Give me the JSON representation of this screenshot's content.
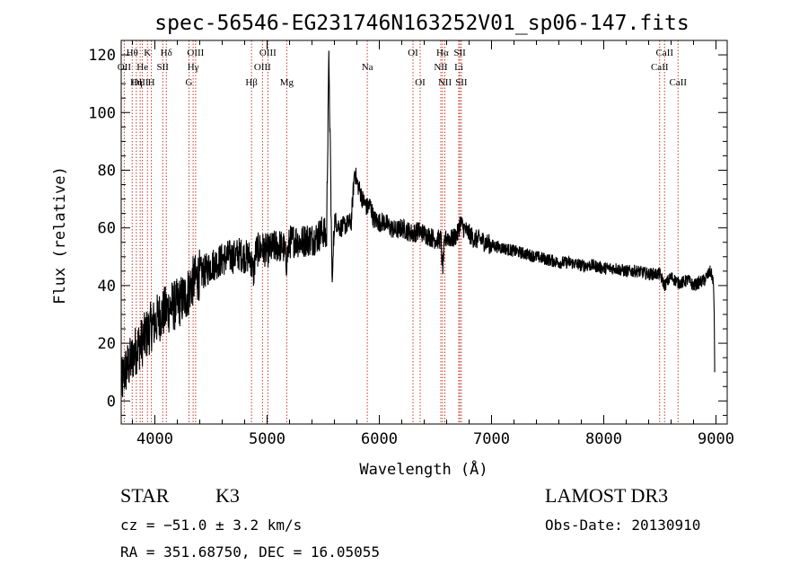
{
  "chart_data": {
    "type": "line",
    "title": "spec-56546-EG231746N163252V01_sp06-147.fits",
    "xlabel": "Wavelength (Å)",
    "ylabel": "Flux (relative)",
    "xlim": [
      3700,
      9100
    ],
    "ylim": [
      -8,
      125
    ],
    "xticks": [
      4000,
      5000,
      6000,
      7000,
      8000,
      9000
    ],
    "yticks": [
      0,
      20,
      40,
      60,
      80,
      100,
      120
    ],
    "grid": false,
    "series": [
      {
        "x": [
          3700,
          3730,
          3760,
          3790,
          3820,
          3850,
          3880,
          3910,
          3940,
          3970,
          4000,
          4030,
          4060,
          4090,
          4120,
          4150,
          4180,
          4210,
          4240,
          4270,
          4300,
          4330,
          4360,
          4400,
          4450,
          4500,
          4550,
          4600,
          4650,
          4700,
          4750,
          4800,
          4850,
          4880,
          4900,
          4950,
          5000,
          5050,
          5100,
          5150,
          5170,
          5200,
          5250,
          5300,
          5350,
          5400,
          5450,
          5500,
          5530,
          5550,
          5580,
          5600,
          5650,
          5700,
          5750,
          5780,
          5800,
          5850,
          5890,
          5920,
          5950,
          6000,
          6050,
          6100,
          6150,
          6200,
          6250,
          6300,
          6350,
          6400,
          6450,
          6500,
          6550,
          6563,
          6580,
          6600,
          6650,
          6700,
          6720,
          6750,
          6800,
          6850,
          6900,
          6950,
          7000,
          7100,
          7200,
          7300,
          7400,
          7500,
          7600,
          7700,
          7800,
          7900,
          8000,
          8100,
          8200,
          8300,
          8400,
          8500,
          8542,
          8600,
          8662,
          8700,
          8750,
          8800,
          8850,
          8900,
          8950,
          8975,
          8985,
          8990
        ],
        "y": [
          5,
          10,
          12,
          14,
          17,
          19,
          20,
          22,
          24,
          26,
          27,
          29,
          30,
          31,
          32,
          33,
          33,
          34,
          35,
          36,
          38,
          41,
          42,
          44,
          45,
          47,
          48,
          49,
          50,
          50,
          51,
          50,
          50,
          44,
          52,
          53,
          52,
          53,
          54,
          53,
          48,
          55,
          56,
          55,
          56,
          56,
          57,
          59,
          56,
          122,
          40,
          63,
          60,
          61,
          62,
          80,
          76,
          70,
          67,
          68,
          63,
          62,
          62,
          60,
          59,
          60,
          59,
          58,
          59,
          58,
          57,
          56,
          56,
          45,
          54,
          57,
          56,
          58,
          62,
          60,
          58,
          56,
          56,
          55,
          54,
          53,
          52,
          51,
          50,
          49,
          48,
          48,
          47,
          47,
          46,
          46,
          45,
          45,
          44,
          44,
          40,
          43,
          41,
          41,
          42,
          40,
          41,
          42,
          45,
          42,
          30,
          5
        ]
      }
    ],
    "lines": [
      {
        "label": "Hθ",
        "x": 3798,
        "row": 0
      },
      {
        "label": "K",
        "x": 3934,
        "row": 0
      },
      {
        "label": "Hδ",
        "x": 4102,
        "row": 0
      },
      {
        "label": "OIII",
        "x": 4363,
        "row": 0
      },
      {
        "label": "OIII",
        "x": 5007,
        "row": 0
      },
      {
        "label": "OI",
        "x": 6300,
        "row": 0
      },
      {
        "label": "Hα",
        "x": 6563,
        "row": 0
      },
      {
        "label": "SII",
        "x": 6717,
        "row": 0
      },
      {
        "label": "CaII",
        "x": 8542,
        "row": 0
      },
      {
        "label": "OII",
        "x": 3727,
        "row": 1
      },
      {
        "label": "He",
        "x": 3889,
        "row": 1
      },
      {
        "label": "SII",
        "x": 4070,
        "row": 1
      },
      {
        "label": "Hγ",
        "x": 4341,
        "row": 1
      },
      {
        "label": "OIII",
        "x": 4959,
        "row": 1
      },
      {
        "label": "Na",
        "x": 5893,
        "row": 1
      },
      {
        "label": "NII",
        "x": 6548,
        "row": 1
      },
      {
        "label": "Li",
        "x": 6708,
        "row": 1
      },
      {
        "label": "CaII",
        "x": 8498,
        "row": 1
      },
      {
        "label": "OIII",
        "x": 3869,
        "row": 2
      },
      {
        "label": "Hη",
        "x": 3835,
        "row": 2
      },
      {
        "label": "H",
        "x": 3969,
        "row": 2
      },
      {
        "label": "G",
        "x": 4304,
        "row": 2
      },
      {
        "label": "Hβ",
        "x": 4861,
        "row": 2
      },
      {
        "label": "Mg",
        "x": 5175,
        "row": 2
      },
      {
        "label": "OI",
        "x": 6364,
        "row": 2
      },
      {
        "label": "NII",
        "x": 6584,
        "row": 2
      },
      {
        "label": "SII",
        "x": 6731,
        "row": 2
      },
      {
        "label": "CaII",
        "x": 8662,
        "row": 2
      }
    ]
  },
  "info": {
    "class": "STAR",
    "subclass": "K3",
    "survey": "LAMOST DR3",
    "redshift": "cz = −51.0 ± 3.2 km/s",
    "obs_date": "Obs-Date: 20130910",
    "coords": "RA = 351.68750, DEC =  16.05055"
  },
  "colors": {
    "axis": "#000000",
    "line_markers": "#c0392b"
  }
}
